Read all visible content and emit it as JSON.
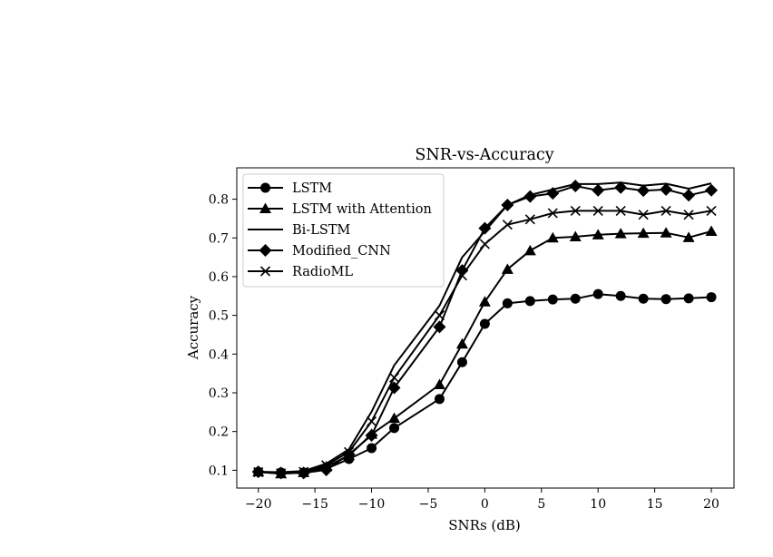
{
  "chart_data": {
    "type": "line",
    "title": "SNR-vs-Accuracy",
    "xlabel": "SNRs (dB)",
    "ylabel": "Accuracy",
    "xlim": [
      -21.9,
      22.0
    ],
    "ylim": [
      0.054,
      0.881
    ],
    "xticks": [
      -20,
      -15,
      -10,
      -5,
      0,
      5,
      10,
      15,
      20
    ],
    "xtick_labels": [
      "−20",
      "−15",
      "−10",
      "−5",
      "0",
      "5",
      "10",
      "15",
      "20"
    ],
    "yticks": [
      0.1,
      0.2,
      0.3,
      0.4,
      0.5,
      0.6,
      0.7,
      0.8
    ],
    "ytick_labels": [
      "0.1",
      "0.2",
      "0.3",
      "0.4",
      "0.5",
      "0.6",
      "0.7",
      "0.8"
    ],
    "grid": false,
    "legend_position": "top-left",
    "x": [
      -20,
      -18,
      -16,
      -14,
      -12,
      -10,
      -8,
      -4,
      -2,
      0,
      2,
      4,
      6,
      8,
      10,
      12,
      14,
      16,
      18,
      20
    ],
    "series": [
      {
        "name": "LSTM",
        "marker": "circle",
        "values": [
          0.096,
          0.094,
          0.094,
          0.104,
          0.129,
          0.157,
          0.209,
          0.284,
          0.379,
          0.478,
          0.531,
          0.537,
          0.541,
          0.543,
          0.555,
          0.55,
          0.543,
          0.542,
          0.544,
          0.547
        ]
      },
      {
        "name": "LSTM with Attention",
        "marker": "triangle",
        "values": [
          0.096,
          0.091,
          0.094,
          0.109,
          0.138,
          0.193,
          0.234,
          0.321,
          0.426,
          0.535,
          0.619,
          0.667,
          0.7,
          0.703,
          0.708,
          0.711,
          0.712,
          0.713,
          0.701,
          0.717
        ]
      },
      {
        "name": "Bi-LSTM",
        "marker": "none",
        "values": [
          0.096,
          0.095,
          0.098,
          0.117,
          0.154,
          0.251,
          0.371,
          0.525,
          0.65,
          0.717,
          0.785,
          0.811,
          0.825,
          0.839,
          0.839,
          0.843,
          0.835,
          0.84,
          0.827,
          0.841
        ]
      },
      {
        "name": "Modified_CNN",
        "marker": "diamond",
        "values": [
          0.096,
          0.093,
          0.093,
          0.101,
          0.141,
          0.19,
          0.313,
          0.47,
          0.616,
          0.725,
          0.785,
          0.807,
          0.815,
          0.834,
          0.823,
          0.83,
          0.822,
          0.825,
          0.81,
          0.823
        ]
      },
      {
        "name": "RadioML",
        "marker": "x",
        "values": [
          0.095,
          0.092,
          0.096,
          0.113,
          0.147,
          0.226,
          0.339,
          0.5,
          0.603,
          0.684,
          0.734,
          0.748,
          0.764,
          0.77,
          0.77,
          0.77,
          0.76,
          0.77,
          0.76,
          0.77
        ]
      }
    ]
  }
}
